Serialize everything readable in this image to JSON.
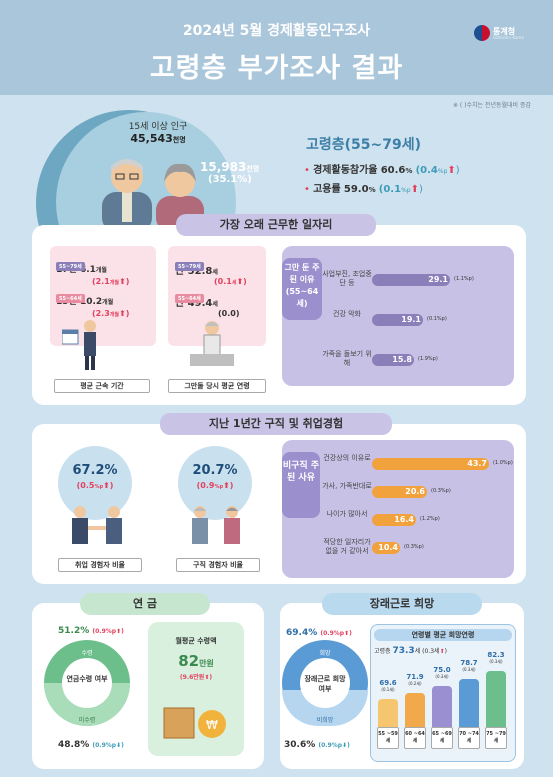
{
  "header": {
    "subtitle": "2024년 5월 경제활동인구조사",
    "title": "고령층 부가조사 결과",
    "logo_name": "통계청",
    "logo_sub": "Statistics Korea"
  },
  "note": "※ ( )수치는 전년동월대비 증감",
  "population": {
    "label": "15세 이상 인구",
    "value": "45,543",
    "unit": "천명"
  },
  "elderly": {
    "value": "15,983",
    "unit": "천명",
    "share": "(35.1%)"
  },
  "summary": {
    "heading": "고령층(55~79세)",
    "item1_label": "경제활동참가율",
    "item1_value": "60.6",
    "item1_change": "(0.4",
    "item2_label": "고용률",
    "item2_value": "59.0",
    "item2_change": "(0.1"
  },
  "s1": {
    "title": "가장 오래 근무한 일자리",
    "tenure": {
      "row1_tag": "55~79세",
      "row1_y": "17년",
      "row1_m": "6.1",
      "row1_unit": "개월",
      "row1_chg": "(2.1",
      "row2_tag": "55~64세",
      "row2_y": "15년",
      "row2_m": "10.2",
      "row2_unit": "개월",
      "row2_chg": "(2.3",
      "caption": "평균 근속 기간"
    },
    "age": {
      "row1_tag": "55~79세",
      "row1_val": "만 52.8",
      "row1_unit": "세",
      "row1_chg": "(0.1",
      "row2_tag": "55~64세",
      "row2_val": "만 49.4",
      "row2_unit": "세",
      "row2_chg": "(0.0)",
      "caption": "그만둘 당시 평균 연령"
    },
    "reasons": {
      "tab": "그만 둔 주된 이유 (55~64세)",
      "items": [
        {
          "label": "사업부진, 조업중단 등",
          "value": "29.1",
          "chg": "(1.1"
        },
        {
          "label": "건강 악화",
          "value": "19.1",
          "chg": "(0.1"
        },
        {
          "label": "가족을 돌보기 위해",
          "value": "15.8",
          "chg": "(1.9"
        }
      ]
    }
  },
  "s2": {
    "title": "지난 1년간 구직 및 취업경험",
    "employ": {
      "value": "67.2%",
      "chg": "(0.5",
      "caption": "취업 경험자 비율"
    },
    "seek": {
      "value": "20.7%",
      "chg": "(0.9",
      "caption": "구직 경험자 비율"
    },
    "reasons": {
      "tab": "비구직 주된 사유",
      "items": [
        {
          "label": "건강상의 이유로",
          "value": "43.7",
          "chg": "(1.0"
        },
        {
          "label": "가사, 가족반대로",
          "value": "20.6",
          "chg": "(0.3"
        },
        {
          "label": "나이가 많아서",
          "value": "16.4",
          "chg": "(1.2"
        },
        {
          "label": "적당한 일자리가 없을 거 같아서",
          "value": "10.4",
          "chg": "(0.3"
        }
      ]
    }
  },
  "s3": {
    "title": "연 금",
    "receive_pct": "51.2%",
    "receive_chg": "(0.9",
    "receive_label": "수령",
    "center": "연금수령 여부",
    "nonreceive_label": "미수령",
    "nonreceive_pct": "48.8%",
    "nonreceive_chg": "(0.9",
    "monthly_label": "월평균 수령액",
    "monthly_value": "82",
    "monthly_unit": "만원",
    "monthly_chg": "(9.6"
  },
  "s4": {
    "title": "장래근로 희망",
    "want_pct": "69.4%",
    "want_chg": "(0.9",
    "want_label": "희망",
    "center": "장래근로 희망여부",
    "nowant_label": "비희망",
    "nowant_pct": "30.6%",
    "nowant_chg": "(0.9",
    "age_title": "연령별 평균 희망연령",
    "overall_label": "고령층",
    "overall_value": "73.3",
    "overall_chg": "(0.3",
    "groups": [
      {
        "value": "69.6",
        "chg": "(0.1",
        "label": "55 ~59세",
        "height": 40
      },
      {
        "value": "71.9",
        "chg": "(0.2",
        "label": "60 ~64세",
        "height": 48
      },
      {
        "value": "75.0",
        "chg": "(0.3",
        "label": "65 ~69세",
        "height": 58
      },
      {
        "value": "78.7",
        "chg": "(0.3",
        "label": "70 ~74세",
        "height": 69
      },
      {
        "value": "82.3",
        "chg": "(0.3",
        "label": "75 ~79세",
        "height": 80
      }
    ]
  },
  "colors": {
    "header": "#aac6da",
    "lavender": "#c9c3e6",
    "pink": "#fbe1e8",
    "orange": "#f2a23d",
    "purple": "#8a7fb8",
    "green": "#6cbf8a",
    "blue": "#5b9bd5"
  }
}
